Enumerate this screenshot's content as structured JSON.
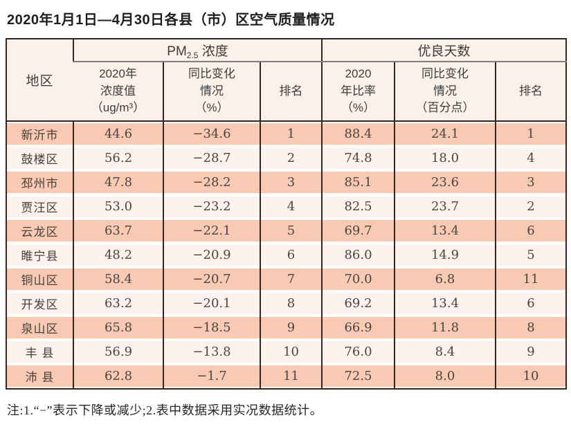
{
  "title": "2020年1月1日—4月30日各县（市）区空气质量情况",
  "table": {
    "header": {
      "region": "地区",
      "pm_group": {
        "prefix": "PM",
        "sub": "2.5",
        "suffix": " 浓度"
      },
      "good_group": "优良天数",
      "sub_headers": [
        "2020年\n浓度值\n（ug/m³）",
        "同比变化\n情况\n（%）",
        "排名",
        "2020\n年比率\n（%）",
        "同比变化\n情况\n（百分点）",
        "排名"
      ]
    },
    "rows": [
      {
        "region": "新沂市",
        "cells": [
          "44.6",
          "−34.6",
          "1",
          "88.4",
          "24.1",
          "1"
        ]
      },
      {
        "region": "鼓楼区",
        "cells": [
          "56.2",
          "−28.7",
          "2",
          "74.8",
          "18.0",
          "4"
        ]
      },
      {
        "region": "邳州市",
        "cells": [
          "47.8",
          "−28.2",
          "3",
          "85.1",
          "23.6",
          "3"
        ]
      },
      {
        "region": "贾汪区",
        "cells": [
          "53.0",
          "−23.2",
          "4",
          "82.5",
          "23.7",
          "2"
        ]
      },
      {
        "region": "云龙区",
        "cells": [
          "63.7",
          "−22.1",
          "5",
          "69.7",
          "13.4",
          "6"
        ]
      },
      {
        "region": "睢宁县",
        "cells": [
          "48.2",
          "−20.9",
          "6",
          "86.0",
          "14.9",
          "5"
        ]
      },
      {
        "region": "铜山区",
        "cells": [
          "58.4",
          "−20.7",
          "7",
          "70.0",
          "6.8",
          "11"
        ]
      },
      {
        "region": "开发区",
        "cells": [
          "63.2",
          "−20.1",
          "8",
          "69.2",
          "13.4",
          "6"
        ]
      },
      {
        "region": "泉山区",
        "cells": [
          "65.8",
          "−18.5",
          "9",
          "66.9",
          "11.8",
          "8"
        ]
      },
      {
        "region": "丰 县",
        "cells": [
          "56.9",
          "−13.8",
          "10",
          "76.0",
          "8.4",
          "9"
        ]
      },
      {
        "region": "沛 县",
        "cells": [
          "62.8",
          "−1.7",
          "11",
          "72.5",
          "8.0",
          "10"
        ]
      }
    ]
  },
  "note": "注:1.“−”表示下降或减少;2.表中数据采用实况数据统计。",
  "colors": {
    "stripe_dark": "#f8cab3",
    "stripe_light": "#fdf2ec",
    "header_bg": "#fcf1e8",
    "border": "#35241f",
    "group_divider": "#7d7d7d"
  }
}
